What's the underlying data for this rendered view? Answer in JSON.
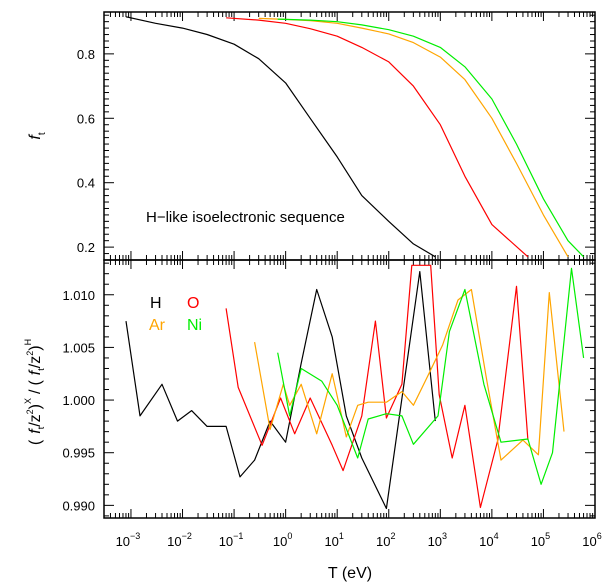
{
  "colors": {
    "H": "#000000",
    "O": "#ff0000",
    "Ar": "#ffa500",
    "Ni": "#00ee00"
  },
  "chart_data": [
    {
      "type": "line",
      "panel": "top",
      "title": "",
      "xlabel": "",
      "ylabel": "f",
      "ylabel_subscript": "t",
      "xscale": "log",
      "xlim": [
        0.0003,
        1000000
      ],
      "ylim": [
        0.16,
        0.93
      ],
      "yticks": [
        0.2,
        0.4,
        0.6,
        0.8
      ],
      "ytick_labels": [
        "0.2",
        "0.4",
        "0.6",
        "0.8"
      ],
      "annotation": "H−like isoelectronic sequence",
      "series": [
        {
          "name": "H",
          "color": "#000000",
          "x": [
            0.0008,
            0.003,
            0.01,
            0.03,
            0.1,
            0.3,
            1,
            3,
            10,
            30,
            100,
            300,
            800
          ],
          "y": [
            0.915,
            0.895,
            0.88,
            0.86,
            0.83,
            0.785,
            0.71,
            0.6,
            0.48,
            0.36,
            0.28,
            0.21,
            0.17
          ]
        },
        {
          "name": "O",
          "color": "#ff0000",
          "x": [
            0.07,
            0.3,
            1,
            3,
            10,
            30,
            100,
            300,
            1000,
            3000,
            10000,
            50000
          ],
          "y": [
            0.912,
            0.905,
            0.895,
            0.878,
            0.855,
            0.82,
            0.775,
            0.7,
            0.58,
            0.42,
            0.27,
            0.17
          ]
        },
        {
          "name": "Ar",
          "color": "#ffa500",
          "x": [
            0.3,
            1,
            3,
            10,
            30,
            100,
            300,
            1000,
            3000,
            10000,
            30000,
            100000,
            300000
          ],
          "y": [
            0.91,
            0.907,
            0.903,
            0.895,
            0.88,
            0.862,
            0.835,
            0.79,
            0.72,
            0.6,
            0.46,
            0.3,
            0.17
          ]
        },
        {
          "name": "Ni",
          "color": "#00ee00",
          "x": [
            0.7,
            3,
            10,
            30,
            100,
            300,
            1000,
            3000,
            10000,
            30000,
            100000,
            300000,
            600000
          ],
          "y": [
            0.908,
            0.905,
            0.9,
            0.89,
            0.875,
            0.855,
            0.82,
            0.76,
            0.66,
            0.52,
            0.35,
            0.22,
            0.17
          ]
        }
      ]
    },
    {
      "type": "line",
      "panel": "bottom",
      "title": "",
      "xlabel": "T (eV)",
      "ylabel": "( f_t /z^2 )^X / ( f_t /z^2 )^H",
      "xscale": "log",
      "xlim": [
        0.0003,
        1000000
      ],
      "ylim": [
        0.9888,
        1.0133
      ],
      "yticks": [
        0.99,
        0.995,
        1.0,
        1.005,
        1.01
      ],
      "ytick_labels": [
        "0.990",
        "0.995",
        "1.000",
        "1.005",
        "1.010"
      ],
      "xticks": [
        0.001,
        0.01,
        0.1,
        1,
        10,
        100,
        1000,
        10000,
        100000,
        1000000
      ],
      "xtick_exponents": [
        "−3",
        "−2",
        "−1",
        "0",
        "1",
        "2",
        "3",
        "4",
        "5",
        "6"
      ],
      "legend": [
        "H",
        "O",
        "Ar",
        "Ni"
      ],
      "legend_position": "top-left",
      "series": [
        {
          "name": "H",
          "color": "#000000",
          "x": [
            0.0008,
            0.0015,
            0.004,
            0.008,
            0.015,
            0.03,
            0.07,
            0.13,
            0.25,
            0.5,
            1,
            2,
            4,
            8,
            15,
            30,
            90,
            400,
            800
          ],
          "y": [
            1.0075,
            0.9985,
            1.0015,
            0.998,
            0.999,
            0.9975,
            0.9975,
            0.9927,
            0.9943,
            0.998,
            0.996,
            1.0035,
            1.0105,
            1.006,
            0.9985,
            0.9945,
            0.9897,
            1.0122,
            0.998
          ]
        },
        {
          "name": "O",
          "color": "#ff0000",
          "x": [
            0.07,
            0.12,
            0.35,
            0.8,
            1.5,
            3,
            8,
            13,
            30,
            55,
            90,
            180,
            280,
            650,
            950,
            1700,
            3000,
            6000,
            13000,
            30000,
            50000
          ],
          "y": [
            1.0087,
            1.0012,
            0.9957,
            1.0002,
            0.9968,
            1.0002,
            0.9957,
            0.9933,
            0.9985,
            1.0075,
            0.9983,
            1.0015,
            1.0128,
            1.0128,
            1.0005,
            0.9945,
            0.9995,
            0.9898,
            0.9962,
            1.0108,
            0.9962
          ]
        },
        {
          "name": "Ar",
          "color": "#ffa500",
          "x": [
            0.25,
            0.5,
            0.9,
            1.2,
            2,
            4,
            8,
            15,
            25,
            40,
            90,
            180,
            300,
            600,
            1100,
            2200,
            4000,
            8000,
            15000,
            40000,
            80000,
            130000,
            250000
          ],
          "y": [
            1.0055,
            0.9972,
            1.0015,
            0.9995,
            1.0015,
            0.9968,
            1.0025,
            0.9965,
            0.9995,
            0.9998,
            0.9998,
            1.0008,
            0.9995,
            1.0025,
            1.0052,
            1.0095,
            1.0105,
            1.0018,
            0.9943,
            0.9962,
            0.9948,
            1.0102,
            0.997
          ]
        },
        {
          "name": "Ni",
          "color": "#00ee00",
          "x": [
            0.7,
            1.2,
            2,
            5,
            10,
            25,
            40,
            90,
            180,
            300,
            900,
            1500,
            3000,
            7000,
            15000,
            50000,
            90000,
            150000,
            350000,
            600000
          ],
          "y": [
            1.0045,
            0.9985,
            1.003,
            1.0018,
            0.9995,
            0.9945,
            0.9982,
            0.9987,
            0.9985,
            0.9958,
            0.9985,
            1.0065,
            1.0105,
            1.0015,
            0.996,
            0.9963,
            0.992,
            0.995,
            1.0125,
            1.004
          ]
        }
      ]
    }
  ]
}
